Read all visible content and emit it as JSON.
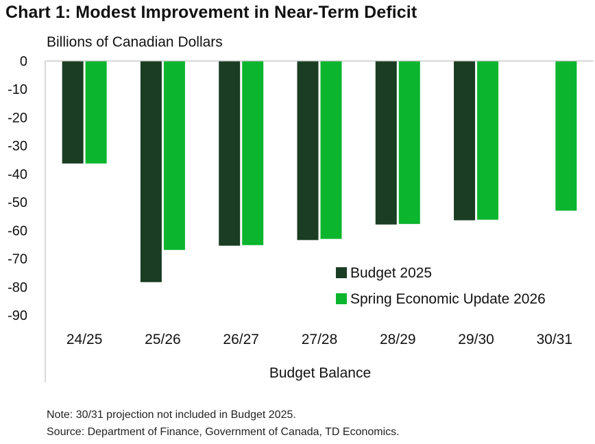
{
  "title": "Chart 1: Modest Improvement in Near-Term Deficit",
  "unit_label": "Billions of Canadian Dollars",
  "notes": {
    "note": "Note: 30/31 projection not included in Budget 2025.",
    "source": "Source: Department of Finance, Government of Canada, TD Economics."
  },
  "chart_data": {
    "type": "bar",
    "title": "Chart 1: Modest Improvement in Near-Term Deficit",
    "ylabel": "Billions of Canadian Dollars",
    "xlabel": "Budget Balance",
    "categories": [
      "24/25",
      "25/26",
      "26/27",
      "27/28",
      "28/29",
      "29/30",
      "30/31"
    ],
    "series": [
      {
        "name": "Budget 2025",
        "color": "#1a3d24",
        "values": [
          -36.3,
          -78.3,
          -65.4,
          -63.4,
          -57.9,
          -56.4,
          null
        ]
      },
      {
        "name": "Spring Economic Update 2026",
        "color": "#0bb52e",
        "values": [
          -36.3,
          -66.9,
          -65.2,
          -63.0,
          -57.7,
          -56.2,
          -53.0
        ]
      }
    ],
    "ylim": [
      -90,
      0
    ],
    "yticks": [
      0,
      -10,
      -20,
      -30,
      -40,
      -50,
      -60,
      -70,
      -80,
      -90
    ],
    "grid": false,
    "legend_position": "bottom-right"
  }
}
